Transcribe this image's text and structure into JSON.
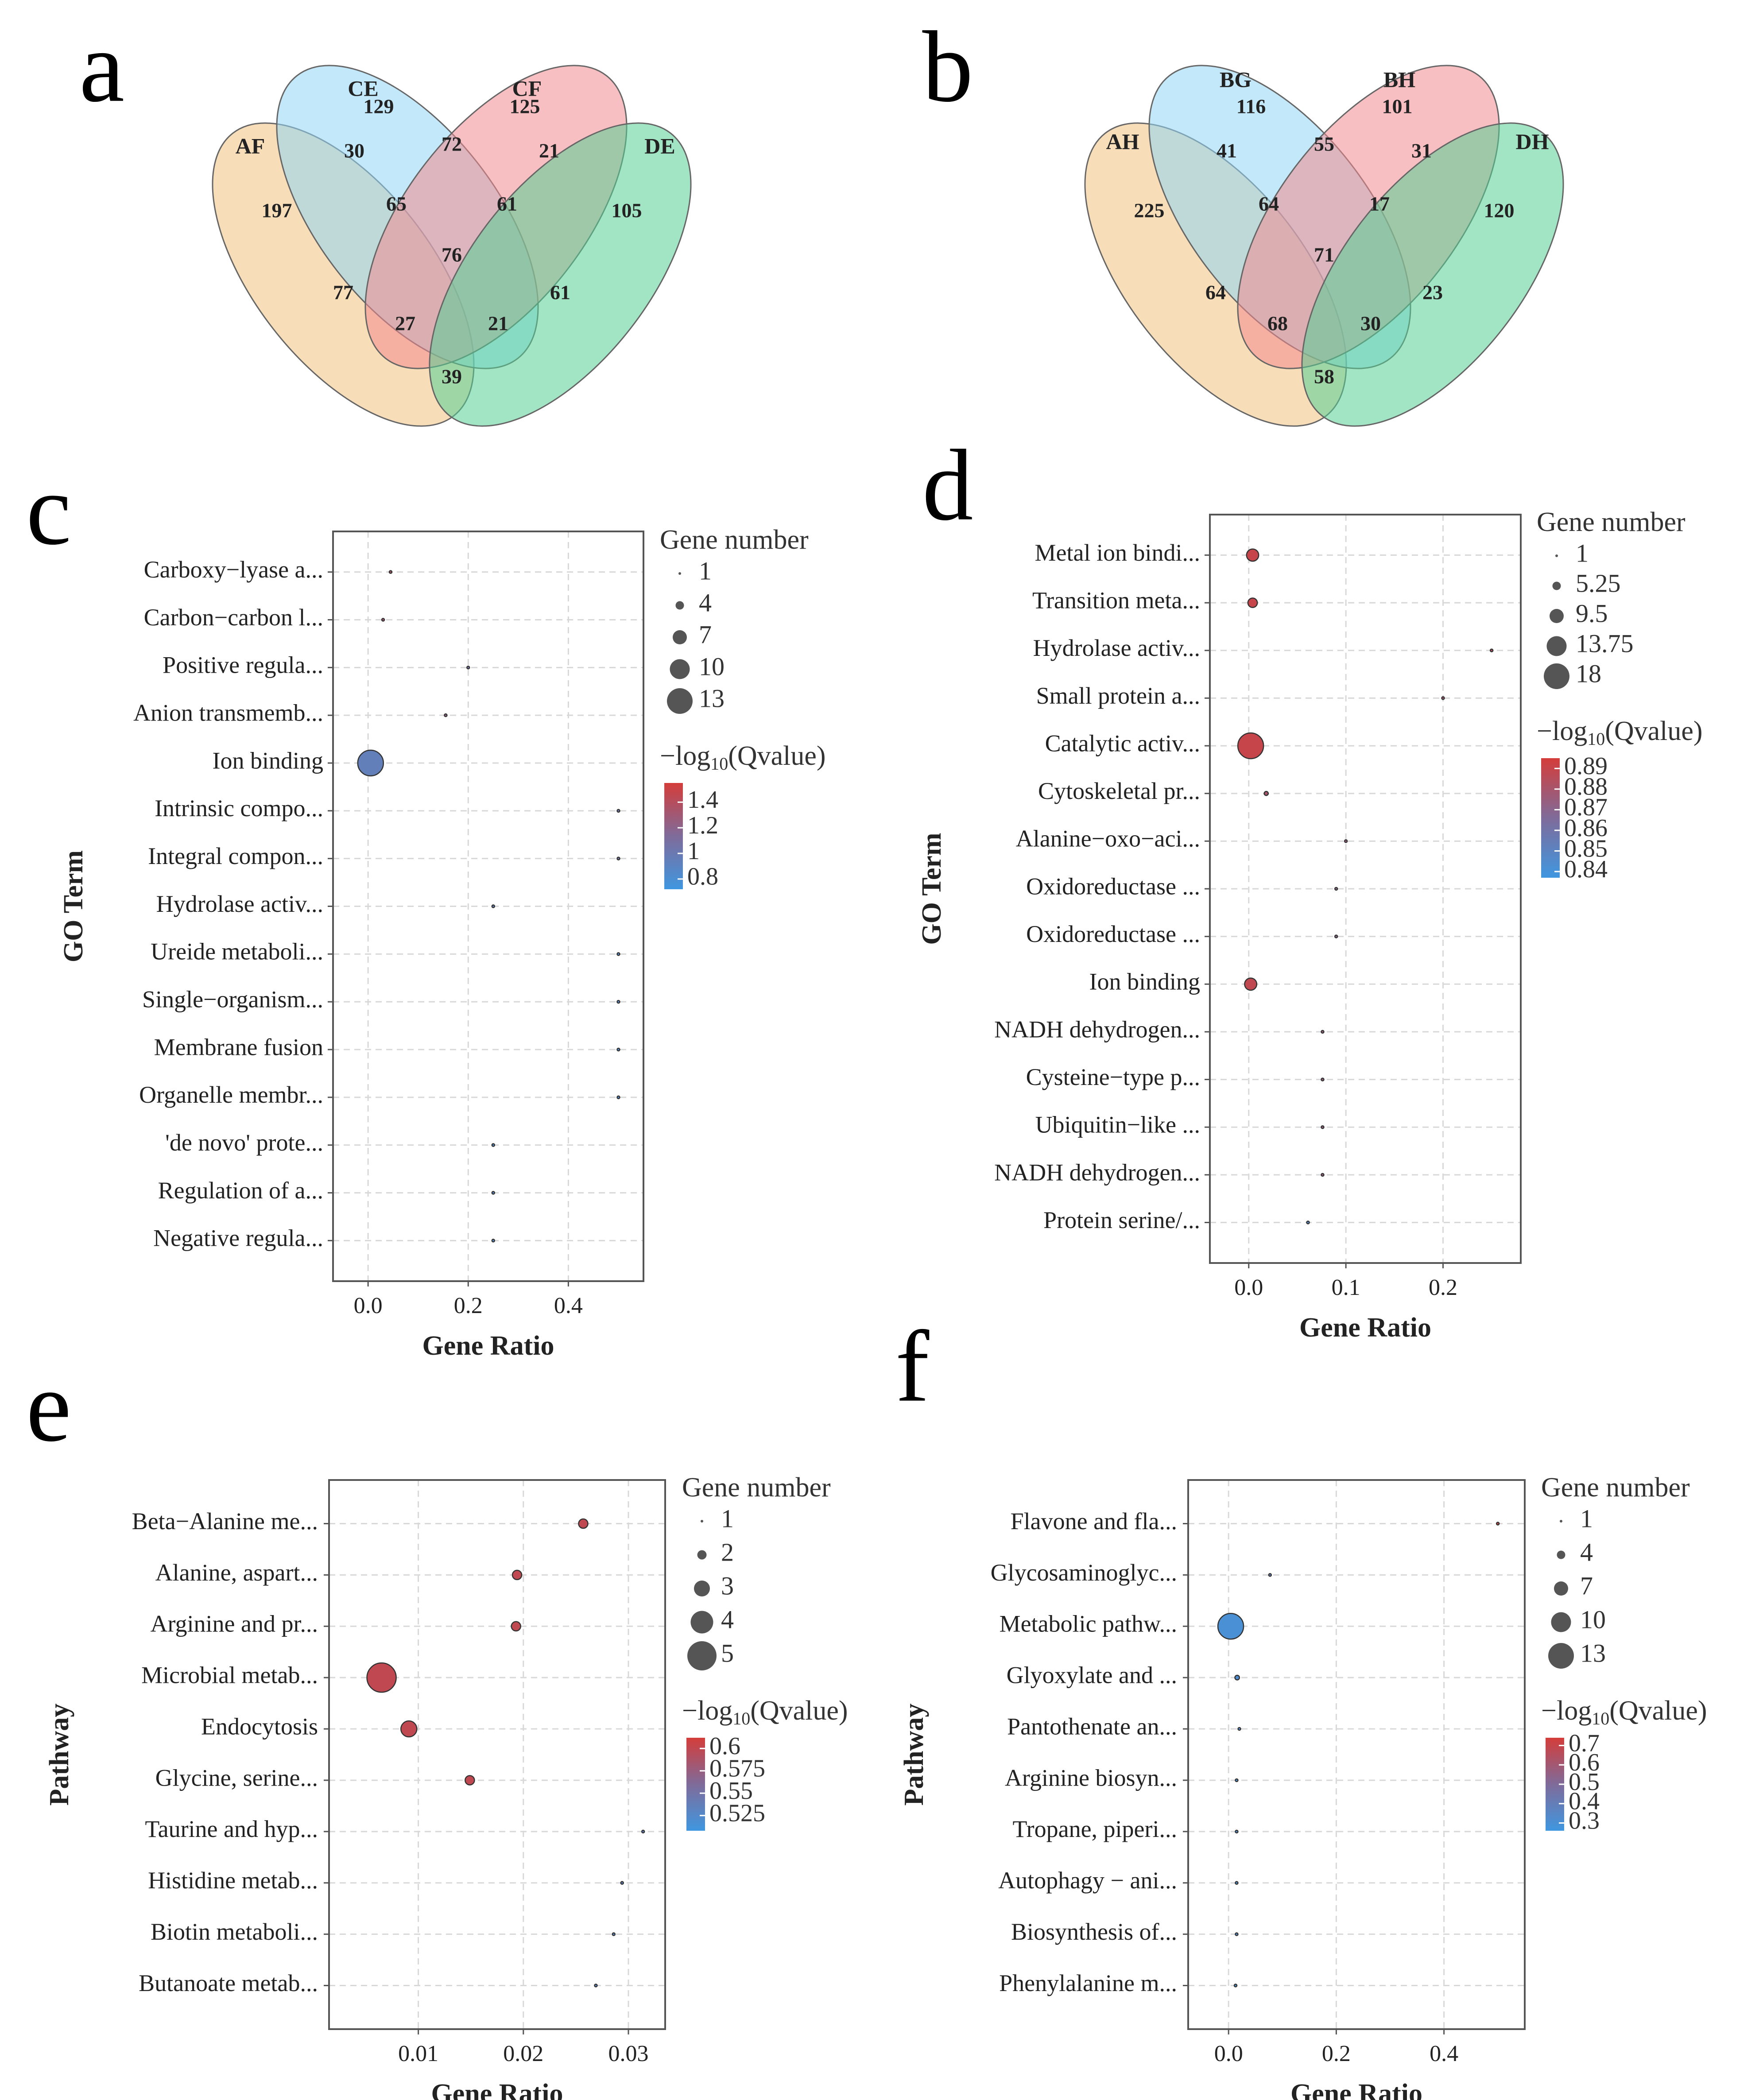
{
  "figure": {
    "panel_letters": [
      "a",
      "b",
      "c",
      "d",
      "e",
      "f"
    ],
    "colors": {
      "venn": [
        "#f3c27e",
        "#8fd6f4",
        "#f28b8f",
        "#56cf96"
      ],
      "qhigh": "#d43d3a",
      "qmid": "#7f6b9a",
      "qlow": "#3f97e0",
      "frame": "#555555",
      "grid": "#d8d8d8"
    }
  },
  "chart_data": [
    {
      "panel": "a",
      "type": "venn",
      "sets": [
        "AF",
        "CE",
        "CF",
        "DE"
      ],
      "regions": {
        "AF": "197",
        "CE": "129",
        "CF": "125",
        "DE": "105",
        "AF&CE": "30",
        "CE&CF": "72",
        "CF&DE": "21",
        "AF&DE": "39",
        "AF&CE&CF": "65",
        "CE&CF&DE": "61",
        "AF&CF": "77",
        "CE&DE": "61",
        "AF&CE&CF&DE": "76",
        "AF&CF&DE": "27",
        "AF&CE&DE": "21"
      }
    },
    {
      "panel": "b",
      "type": "venn",
      "sets": [
        "AH",
        "BG",
        "BH",
        "DH"
      ],
      "regions": {
        "AF": "225",
        "CE": "116",
        "CF": "101",
        "DE": "120",
        "AF&CE": "41",
        "CE&CF": "55",
        "CF&DE": "31",
        "AF&DE": "58",
        "AF&CE&CF": "64",
        "CE&CF&DE": "17",
        "AF&CF": "64",
        "CE&DE": "23",
        "AF&CE&CF&DE": "71",
        "AF&CF&DE": "68",
        "AF&CE&DE": "30"
      }
    },
    {
      "panel": "c",
      "type": "scatter",
      "ylabel": "GO Term",
      "xlabel": "Gene Ratio",
      "xlim": [
        -0.07,
        0.55
      ],
      "xticks": [
        0,
        0.2,
        0.4
      ],
      "xtick_labels": [
        "0.0",
        "0.2",
        "0.4"
      ],
      "size_title": "Gene number",
      "size_levels": [
        1,
        4,
        7,
        10,
        13
      ],
      "size_labels": [
        "1",
        "4",
        "7",
        "10",
        "13"
      ],
      "size_range": [
        1,
        13
      ],
      "color_title_prefix": "−log",
      "color_title_sub": "10",
      "color_title_suffix": "(Qvalue)",
      "color_range": [
        0.72,
        1.55
      ],
      "color_ticks": [
        1.4,
        1.2,
        1,
        0.8
      ],
      "color_tick_labels": [
        "1.4",
        "1.2",
        "1",
        "0.8"
      ],
      "terms": [
        "Carboxy−lyase a...",
        "Carbon−carbon l...",
        "Positive regula...",
        "Anion transmemb...",
        "Ion binding",
        "Intrinsic compo...",
        "Integral compon...",
        "Hydrolase activ...",
        "Ureide metaboli...",
        "Single−organism...",
        "Membrane fusion",
        "Organelle membr...",
        "'de novo' prote...",
        "Regulation of a...",
        "Negative regula..."
      ],
      "gene_ratio": [
        0.045,
        0.03,
        0.2,
        0.155,
        0.005,
        0.5,
        0.5,
        0.25,
        0.5,
        0.5,
        0.5,
        0.5,
        0.25,
        0.25,
        0.25
      ],
      "gene_number": [
        1,
        1,
        1,
        1,
        13,
        1,
        1,
        1,
        1,
        1,
        1,
        1,
        1,
        1,
        1
      ],
      "neg_log10_q": [
        1.35,
        1.33,
        1.1,
        1.2,
        0.95,
        1.0,
        1.05,
        0.98,
        0.85,
        0.87,
        0.85,
        0.85,
        0.83,
        0.85,
        0.85
      ]
    },
    {
      "panel": "d",
      "type": "scatter",
      "ylabel": "GO Term",
      "xlabel": "Gene Ratio",
      "xlim": [
        -0.04,
        0.28
      ],
      "xticks": [
        0,
        0.1,
        0.2
      ],
      "xtick_labels": [
        "0.0",
        "0.1",
        "0.2"
      ],
      "size_title": "Gene number",
      "size_levels": [
        1,
        5.25,
        9.5,
        13.75,
        18
      ],
      "size_labels": [
        "1",
        "5.25",
        "9.5",
        "13.75",
        "18"
      ],
      "size_range": [
        1,
        18
      ],
      "color_title_prefix": "−log",
      "color_title_sub": "10",
      "color_title_suffix": "(Qvalue)",
      "color_range": [
        0.837,
        0.895
      ],
      "color_ticks": [
        0.89,
        0.88,
        0.87,
        0.86,
        0.85,
        0.84
      ],
      "color_tick_labels": [
        "0.89",
        "0.88",
        "0.87",
        "0.86",
        "0.85",
        "0.84"
      ],
      "terms": [
        "Metal ion bindi...",
        "Transition meta...",
        "Hydrolase activ...",
        "Small protein a...",
        "Catalytic activ...",
        "Cytoskeletal pr...",
        "Alanine−oxo−aci...",
        "Oxidoreductase ...",
        "Oxidoreductase ...",
        "Ion binding",
        "NADH dehydrogen...",
        "Cysteine−type p...",
        "Ubiquitin−like ...",
        "NADH dehydrogen...",
        "Protein serine/..."
      ],
      "gene_ratio": [
        0.004,
        0.004,
        0.25,
        0.2,
        0.002,
        0.018,
        0.1,
        0.09,
        0.09,
        0.002,
        0.076,
        0.076,
        0.076,
        0.076,
        0.061
      ],
      "gene_number": [
        8,
        6,
        1,
        1,
        18,
        2,
        1,
        1,
        1,
        8,
        1,
        1,
        1,
        1,
        1
      ],
      "neg_log10_q": [
        0.89,
        0.89,
        0.885,
        0.88,
        0.89,
        0.88,
        0.875,
        0.87,
        0.87,
        0.888,
        0.875,
        0.875,
        0.875,
        0.875,
        0.845
      ]
    },
    {
      "panel": "e",
      "type": "scatter",
      "ylabel": "Pathway",
      "xlabel": "Gene Ratio",
      "xlim": [
        0.0015,
        0.0335
      ],
      "xticks": [
        0.01,
        0.02,
        0.03
      ],
      "xtick_labels": [
        "0.01",
        "0.02",
        "0.03"
      ],
      "size_title": "Gene number",
      "size_levels": [
        1,
        2,
        3,
        4,
        5
      ],
      "size_labels": [
        "1",
        "2",
        "3",
        "4",
        "5"
      ],
      "size_range": [
        1,
        5
      ],
      "color_title_prefix": "−log",
      "color_title_sub": "10",
      "color_title_suffix": "(Qvalue)",
      "color_range": [
        0.508,
        0.612
      ],
      "color_ticks": [
        0.6,
        0.575,
        0.55,
        0.525
      ],
      "color_tick_labels": [
        "0.6",
        "0.575",
        "0.55",
        "0.525"
      ],
      "terms": [
        "Beta−Alanine me...",
        "Alanine, aspart...",
        "Arginine and pr...",
        "Microbial metab...",
        "Endocytosis",
        "Glycine, serine...",
        "Taurine and hyp...",
        "Histidine metab...",
        "Biotin metaboli...",
        "Butanoate metab..."
      ],
      "gene_ratio": [
        0.0257,
        0.0194,
        0.0193,
        0.0065,
        0.0091,
        0.0149,
        0.0314,
        0.0294,
        0.0286,
        0.0269
      ],
      "gene_number": [
        2,
        2,
        2,
        5,
        3,
        2,
        1,
        1,
        1,
        1
      ],
      "neg_log10_q": [
        0.6,
        0.6,
        0.6,
        0.6,
        0.6,
        0.6,
        0.53,
        0.53,
        0.53,
        0.53
      ]
    },
    {
      "panel": "f",
      "type": "scatter",
      "ylabel": "Pathway",
      "xlabel": "Gene Ratio",
      "xlim": [
        -0.075,
        0.55
      ],
      "xticks": [
        0,
        0.2,
        0.4
      ],
      "xtick_labels": [
        "0.0",
        "0.2",
        "0.4"
      ],
      "size_title": "Gene number",
      "size_levels": [
        1,
        4,
        7,
        10,
        13
      ],
      "size_labels": [
        "1",
        "4",
        "7",
        "10",
        "13"
      ],
      "size_range": [
        1,
        13
      ],
      "color_title_prefix": "−log",
      "color_title_sub": "10",
      "color_title_suffix": "(Qvalue)",
      "color_range": [
        0.26,
        0.74
      ],
      "color_ticks": [
        0.7,
        0.6,
        0.5,
        0.4,
        0.3
      ],
      "color_tick_labels": [
        "0.7",
        "0.6",
        "0.5",
        "0.4",
        "0.3"
      ],
      "terms": [
        "Flavone and fla...",
        "Glycosaminoglyc...",
        "Metabolic pathw...",
        "Glyoxylate and ...",
        "Pantothenate an...",
        "Arginine biosyn...",
        "Tropane, piperi...",
        "Autophagy − ani...",
        "Biosynthesis of...",
        "Phenylalanine m..."
      ],
      "gene_ratio": [
        0.5,
        0.077,
        0.004,
        0.016,
        0.02,
        0.015,
        0.015,
        0.015,
        0.015,
        0.013
      ],
      "gene_number": [
        1,
        1,
        13,
        2,
        1,
        1,
        1,
        1,
        1,
        1
      ],
      "neg_log10_q": [
        0.7,
        0.4,
        0.3,
        0.32,
        0.32,
        0.32,
        0.32,
        0.32,
        0.32,
        0.32
      ]
    }
  ]
}
